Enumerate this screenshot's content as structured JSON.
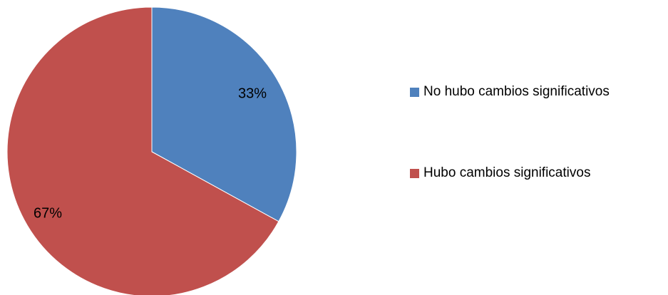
{
  "chart_data": {
    "type": "pie",
    "categories": [
      "No hubo cambios significativos",
      "Hubo cambios significativos"
    ],
    "values": [
      33,
      67
    ],
    "data_labels": [
      "33%",
      "67%"
    ],
    "colors": [
      "#4f81bd",
      "#c0504d"
    ],
    "legend_position": "right",
    "title": ""
  }
}
